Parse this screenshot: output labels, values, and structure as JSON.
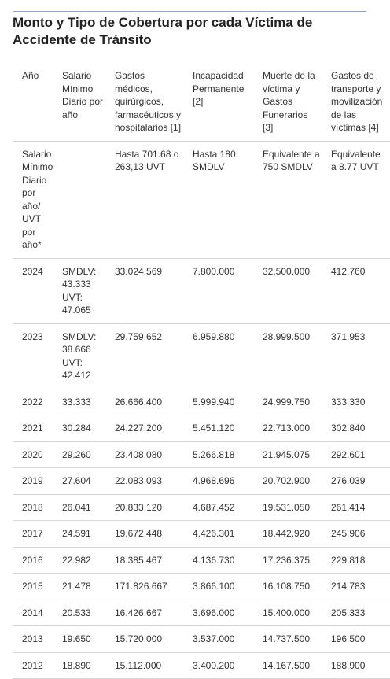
{
  "header": {
    "title": "Monto y Tipo de Cobertura por cada Víctima de Accidente de Tránsito"
  },
  "table": {
    "columns": [
      "Año",
      "Salario Mínimo Diario por año",
      "Gastos médicos, quirúrgicos, farmacéuticos y hospitalarios [1]",
      "Incapacidad Permanente [2]",
      "Muerte de la víctima y Gastos Funerarios [3]",
      "Gastos de transporte y movilización de las víctimas [4]"
    ],
    "rows": [
      [
        "Salario Mínimo Diario por año/ UVT por año*",
        "",
        "Hasta 701.68 o 263,13 UVT",
        "Hasta 180 SMDLV",
        "Equivalente a 750 SMDLV",
        "Equivalente a 8.77 UVT"
      ],
      [
        "2024",
        "SMDLV: 43.333 UVT: 47.065",
        "33.024.569",
        "7.800.000",
        "32.500.000",
        "412.760"
      ],
      [
        "2023",
        "SMDLV: 38.666 UVT: 42.412",
        "29.759.652",
        "6.959.880",
        "28.999.500",
        "371.953"
      ],
      [
        "2022",
        "33.333",
        "26.666.400",
        "5.999.940",
        "24.999.750",
        "333.330"
      ],
      [
        "2021",
        "30.284",
        "24.227.200",
        "5.451.120",
        "22.713.000",
        "302.840"
      ],
      [
        "2020",
        "29.260",
        "23.408.080",
        "5.266.818",
        "21.945.075",
        "292.601"
      ],
      [
        "2019",
        "27.604",
        "22.083.093",
        "4.968.696",
        "20.702.900",
        "276.039"
      ],
      [
        "2018",
        "26.041",
        "20.833.120",
        "4.687.452",
        "19.531.050",
        "261.414"
      ],
      [
        "2017",
        "24.591",
        "19.672.448",
        "4.426.301",
        "18.442.920",
        "245.906"
      ],
      [
        "2016",
        "22.982",
        "18.385.467",
        "4.136.730",
        "17.236.375",
        "229.818"
      ],
      [
        "2015",
        "21.478",
        "171.826.667",
        "3.866.100",
        "16.108.750",
        "214.783"
      ],
      [
        "2014",
        "20.533",
        "16.426.667",
        "3.696.000",
        "15.400.000",
        "205.333"
      ],
      [
        "2013",
        "19.650",
        "15.720.000",
        "3.537.000",
        "14.737.500",
        "196.500"
      ],
      [
        "2012",
        "18.890",
        "15.112.000",
        "3.400.200",
        "14.167.500",
        "188.900"
      ]
    ]
  }
}
